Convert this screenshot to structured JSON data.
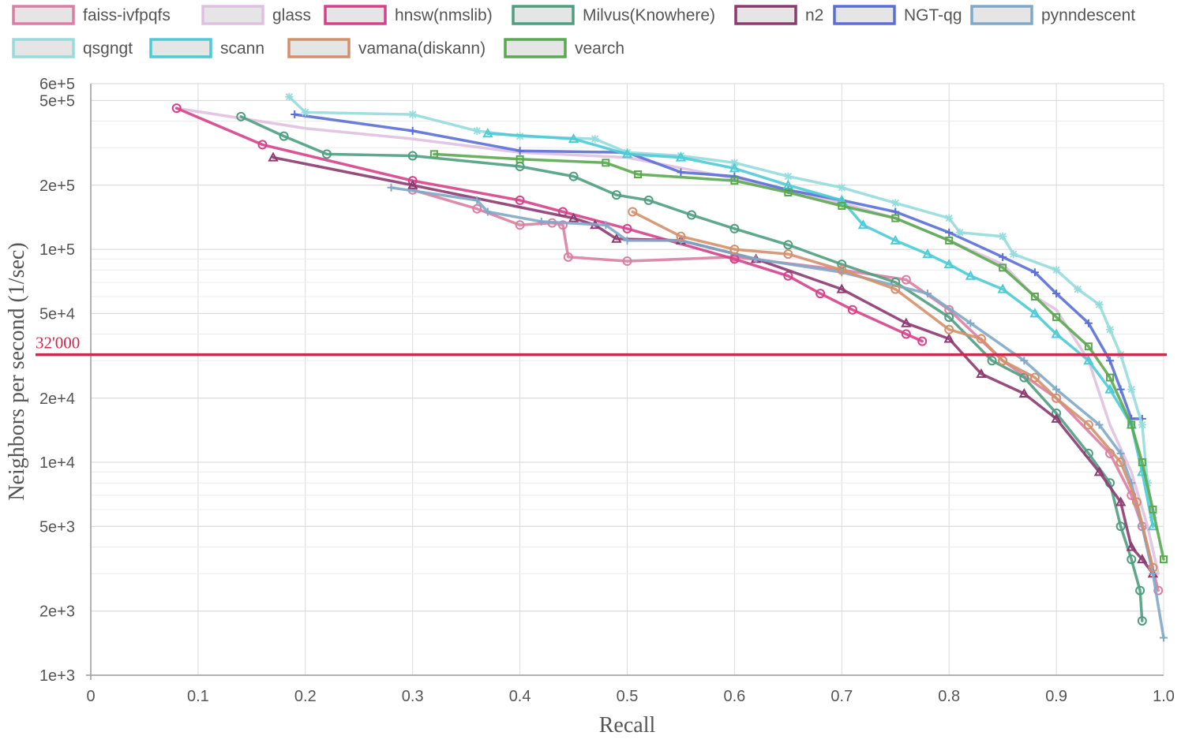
{
  "chart_data": {
    "type": "line",
    "xlabel": "Recall",
    "ylabel": "Neighbors per second (1/sec)",
    "xlim": [
      0,
      1.0
    ],
    "ylim": [
      1000,
      600000
    ],
    "y_scale": "log",
    "grid": true,
    "legend_position": "top",
    "x_ticks": [
      {
        "value": 0,
        "label": "0"
      },
      {
        "value": 0.1,
        "label": "0.1"
      },
      {
        "value": 0.2,
        "label": "0.2"
      },
      {
        "value": 0.3,
        "label": "0.3"
      },
      {
        "value": 0.4,
        "label": "0.4"
      },
      {
        "value": 0.5,
        "label": "0.5"
      },
      {
        "value": 0.6,
        "label": "0.6"
      },
      {
        "value": 0.7,
        "label": "0.7"
      },
      {
        "value": 0.8,
        "label": "0.8"
      },
      {
        "value": 0.9,
        "label": "0.9"
      },
      {
        "value": 1.0,
        "label": "1.0"
      }
    ],
    "y_ticks": [
      {
        "value": 1000,
        "label": "1e+3"
      },
      {
        "value": 2000,
        "label": "2e+3"
      },
      {
        "value": 5000,
        "label": "5e+3"
      },
      {
        "value": 10000,
        "label": "1e+4"
      },
      {
        "value": 20000,
        "label": "2e+4"
      },
      {
        "value": 50000,
        "label": "5e+4"
      },
      {
        "value": 100000,
        "label": "1e+5"
      },
      {
        "value": 200000,
        "label": "2e+5"
      },
      {
        "value": 500000,
        "label": "5e+5"
      },
      {
        "value": 600000,
        "label": "6e+5"
      }
    ],
    "reference_line": {
      "value": 32000,
      "label": "32'000",
      "color": "#cc2a4d"
    },
    "series": [
      {
        "name": "faiss-ivfpqfs",
        "color": "#d97fa3",
        "marker": "circle",
        "points": [
          [
            0.3,
            190000
          ],
          [
            0.36,
            155000
          ],
          [
            0.4,
            130000
          ],
          [
            0.43,
            133000
          ],
          [
            0.44,
            130000
          ],
          [
            0.445,
            92000
          ],
          [
            0.5,
            88000
          ],
          [
            0.6,
            92000
          ],
          [
            0.7,
            80000
          ],
          [
            0.76,
            72000
          ],
          [
            0.8,
            52000
          ],
          [
            0.85,
            30000
          ],
          [
            0.9,
            20000
          ],
          [
            0.95,
            11000
          ],
          [
            0.97,
            7000
          ],
          [
            0.98,
            5000
          ],
          [
            0.995,
            2500
          ]
        ]
      },
      {
        "name": "glass",
        "color": "#e0c0e0",
        "marker": "none",
        "points": [
          [
            0.08,
            460000
          ],
          [
            0.2,
            370000
          ],
          [
            0.3,
            330000
          ],
          [
            0.4,
            285000
          ],
          [
            0.5,
            270000
          ],
          [
            0.6,
            215000
          ],
          [
            0.7,
            165000
          ],
          [
            0.75,
            140000
          ],
          [
            0.8,
            110000
          ],
          [
            0.85,
            85000
          ],
          [
            0.88,
            60000
          ],
          [
            0.9,
            52000
          ],
          [
            0.93,
            30000
          ],
          [
            0.95,
            15000
          ],
          [
            0.97,
            9000
          ],
          [
            0.985,
            5000
          ],
          [
            0.995,
            3000
          ]
        ]
      },
      {
        "name": "hnsw(nmslib)",
        "color": "#d6428a",
        "marker": "circle",
        "points": [
          [
            0.08,
            460000
          ],
          [
            0.16,
            310000
          ],
          [
            0.3,
            210000
          ],
          [
            0.4,
            170000
          ],
          [
            0.44,
            150000
          ],
          [
            0.5,
            125000
          ],
          [
            0.6,
            90000
          ],
          [
            0.65,
            75000
          ],
          [
            0.68,
            62000
          ],
          [
            0.71,
            52000
          ],
          [
            0.76,
            40000
          ],
          [
            0.775,
            37000
          ]
        ]
      },
      {
        "name": "Milvus(Knowhere)",
        "color": "#4f9e80",
        "marker": "circle",
        "points": [
          [
            0.14,
            420000
          ],
          [
            0.18,
            340000
          ],
          [
            0.22,
            280000
          ],
          [
            0.3,
            275000
          ],
          [
            0.4,
            245000
          ],
          [
            0.45,
            220000
          ],
          [
            0.49,
            180000
          ],
          [
            0.52,
            170000
          ],
          [
            0.56,
            145000
          ],
          [
            0.6,
            125000
          ],
          [
            0.65,
            105000
          ],
          [
            0.7,
            85000
          ],
          [
            0.75,
            70000
          ],
          [
            0.8,
            48000
          ],
          [
            0.84,
            30000
          ],
          [
            0.87,
            25000
          ],
          [
            0.9,
            17000
          ],
          [
            0.93,
            11000
          ],
          [
            0.95,
            8000
          ],
          [
            0.96,
            5000
          ],
          [
            0.97,
            3500
          ],
          [
            0.978,
            2500
          ],
          [
            0.98,
            1800
          ]
        ]
      },
      {
        "name": "n2",
        "color": "#8c3a70",
        "marker": "triangle",
        "points": [
          [
            0.17,
            270000
          ],
          [
            0.3,
            200000
          ],
          [
            0.45,
            140000
          ],
          [
            0.47,
            130000
          ],
          [
            0.49,
            112000
          ],
          [
            0.55,
            110000
          ],
          [
            0.62,
            90000
          ],
          [
            0.7,
            65000
          ],
          [
            0.76,
            45000
          ],
          [
            0.8,
            38000
          ],
          [
            0.83,
            26000
          ],
          [
            0.87,
            21000
          ],
          [
            0.9,
            16000
          ],
          [
            0.94,
            9000
          ],
          [
            0.96,
            6500
          ],
          [
            0.97,
            4000
          ],
          [
            0.98,
            3500
          ],
          [
            0.99,
            3000
          ]
        ]
      },
      {
        "name": "NGT-qg",
        "color": "#5a6fd6",
        "marker": "plus",
        "points": [
          [
            0.19,
            430000
          ],
          [
            0.3,
            360000
          ],
          [
            0.4,
            290000
          ],
          [
            0.5,
            285000
          ],
          [
            0.55,
            230000
          ],
          [
            0.6,
            220000
          ],
          [
            0.65,
            190000
          ],
          [
            0.7,
            170000
          ],
          [
            0.75,
            150000
          ],
          [
            0.8,
            120000
          ],
          [
            0.85,
            92000
          ],
          [
            0.88,
            78000
          ],
          [
            0.9,
            62000
          ],
          [
            0.93,
            45000
          ],
          [
            0.95,
            30000
          ],
          [
            0.96,
            22000
          ],
          [
            0.97,
            16000
          ],
          [
            0.98,
            16000
          ]
        ]
      },
      {
        "name": "pynndescent",
        "color": "#80a8c8",
        "marker": "plus",
        "points": [
          [
            0.28,
            195000
          ],
          [
            0.36,
            170000
          ],
          [
            0.37,
            150000
          ],
          [
            0.42,
            135000
          ],
          [
            0.48,
            130000
          ],
          [
            0.5,
            110000
          ],
          [
            0.55,
            110000
          ],
          [
            0.62,
            90000
          ],
          [
            0.7,
            78000
          ],
          [
            0.78,
            62000
          ],
          [
            0.82,
            45000
          ],
          [
            0.87,
            30000
          ],
          [
            0.9,
            22000
          ],
          [
            0.94,
            15000
          ],
          [
            0.96,
            11000
          ],
          [
            0.97,
            8000
          ],
          [
            0.98,
            5000
          ],
          [
            0.99,
            3000
          ],
          [
            1.0,
            1500
          ]
        ]
      },
      {
        "name": "qsgngt",
        "color": "#96dcdc",
        "marker": "star",
        "points": [
          [
            0.185,
            520000
          ],
          [
            0.2,
            440000
          ],
          [
            0.3,
            430000
          ],
          [
            0.36,
            360000
          ],
          [
            0.4,
            340000
          ],
          [
            0.47,
            330000
          ],
          [
            0.5,
            285000
          ],
          [
            0.55,
            275000
          ],
          [
            0.6,
            255000
          ],
          [
            0.65,
            220000
          ],
          [
            0.7,
            195000
          ],
          [
            0.75,
            165000
          ],
          [
            0.8,
            140000
          ],
          [
            0.81,
            120000
          ],
          [
            0.85,
            115000
          ],
          [
            0.86,
            95000
          ],
          [
            0.9,
            80000
          ],
          [
            0.92,
            65000
          ],
          [
            0.94,
            55000
          ],
          [
            0.95,
            42000
          ],
          [
            0.96,
            32000
          ],
          [
            0.97,
            22000
          ],
          [
            0.98,
            15000
          ],
          [
            0.985,
            8000
          ],
          [
            0.99,
            5500
          ]
        ]
      },
      {
        "name": "scann",
        "color": "#4ccbd6",
        "marker": "triangle",
        "points": [
          [
            0.37,
            350000
          ],
          [
            0.45,
            330000
          ],
          [
            0.5,
            280000
          ],
          [
            0.55,
            270000
          ],
          [
            0.6,
            240000
          ],
          [
            0.65,
            200000
          ],
          [
            0.7,
            170000
          ],
          [
            0.72,
            130000
          ],
          [
            0.75,
            110000
          ],
          [
            0.78,
            95000
          ],
          [
            0.8,
            85000
          ],
          [
            0.82,
            75000
          ],
          [
            0.85,
            65000
          ],
          [
            0.88,
            50000
          ],
          [
            0.9,
            40000
          ],
          [
            0.93,
            30000
          ],
          [
            0.95,
            22000
          ],
          [
            0.97,
            15000
          ],
          [
            0.98,
            9000
          ],
          [
            0.99,
            5000
          ]
        ]
      },
      {
        "name": "vamana(diskann)",
        "color": "#d4906c",
        "marker": "circle",
        "points": [
          [
            0.505,
            150000
          ],
          [
            0.55,
            115000
          ],
          [
            0.6,
            100000
          ],
          [
            0.65,
            95000
          ],
          [
            0.7,
            80000
          ],
          [
            0.75,
            65000
          ],
          [
            0.8,
            42000
          ],
          [
            0.83,
            38000
          ],
          [
            0.85,
            30000
          ],
          [
            0.88,
            25000
          ],
          [
            0.9,
            20000
          ],
          [
            0.93,
            15000
          ],
          [
            0.96,
            10000
          ],
          [
            0.975,
            6500
          ],
          [
            0.99,
            3200
          ]
        ]
      },
      {
        "name": "vearch",
        "color": "#5aa850",
        "marker": "square",
        "points": [
          [
            0.32,
            280000
          ],
          [
            0.4,
            265000
          ],
          [
            0.48,
            255000
          ],
          [
            0.51,
            225000
          ],
          [
            0.6,
            210000
          ],
          [
            0.65,
            185000
          ],
          [
            0.7,
            160000
          ],
          [
            0.75,
            140000
          ],
          [
            0.8,
            110000
          ],
          [
            0.85,
            82000
          ],
          [
            0.88,
            60000
          ],
          [
            0.9,
            48000
          ],
          [
            0.93,
            35000
          ],
          [
            0.95,
            25000
          ],
          [
            0.97,
            15000
          ],
          [
            0.98,
            10000
          ],
          [
            0.99,
            6000
          ],
          [
            1.0,
            3500
          ]
        ]
      }
    ]
  }
}
